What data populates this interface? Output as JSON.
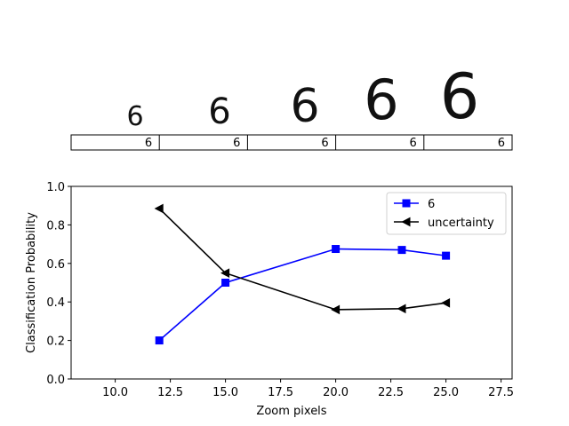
{
  "digit_strip": {
    "digits": [
      "6",
      "6",
      "6",
      "6",
      "6"
    ],
    "table_labels": [
      "6",
      "6",
      "6",
      "6",
      "6"
    ]
  },
  "chart_data": {
    "type": "line",
    "xlabel": "Zoom pixels",
    "ylabel": "Classification Probability",
    "xlim": [
      8,
      28
    ],
    "ylim": [
      0.0,
      1.0
    ],
    "xticks": [
      "10.0",
      "12.5",
      "15.0",
      "17.5",
      "20.0",
      "22.5",
      "25.0",
      "27.5"
    ],
    "yticks": [
      "0.0",
      "0.2",
      "0.4",
      "0.6",
      "0.8",
      "1.0"
    ],
    "legend_position": "top-right",
    "grid": false,
    "series": [
      {
        "name": "6",
        "color": "#0000ff",
        "marker": "square",
        "x": [
          12,
          15,
          20,
          23,
          25
        ],
        "y": [
          0.2,
          0.5,
          0.675,
          0.67,
          0.64
        ]
      },
      {
        "name": "uncertainty",
        "color": "#000000",
        "marker": "triangle-left",
        "x": [
          12,
          15,
          20,
          23,
          25
        ],
        "y": [
          0.885,
          0.55,
          0.36,
          0.365,
          0.395
        ]
      }
    ]
  }
}
